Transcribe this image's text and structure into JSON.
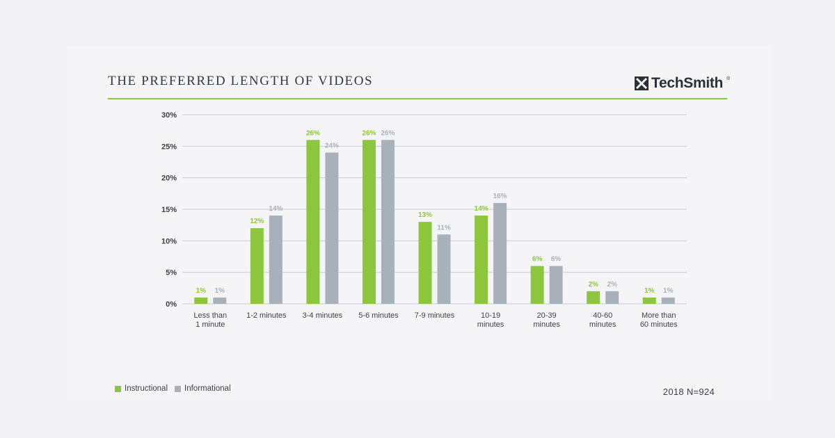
{
  "header": {
    "title": "THE PREFERRED LENGTH OF VIDEOS",
    "brand": "TechSmith",
    "brand_mark": "®"
  },
  "footer": {
    "note": "2018 N=924"
  },
  "colors": {
    "instructional": "#8cc63f",
    "informational": "#a8b1b9",
    "grid": "#c9ccd2",
    "axis_text": "#3b3f45",
    "accent_rule": "#8cc63f"
  },
  "chart_data": {
    "type": "bar",
    "categories": [
      [
        "Less than",
        "1 minute"
      ],
      [
        "1-2 minutes"
      ],
      [
        "3-4 minutes"
      ],
      [
        "5-6 minutes"
      ],
      [
        "7-9 minutes"
      ],
      [
        "10-19",
        "minutes"
      ],
      [
        "20-39",
        "minutes"
      ],
      [
        "40-60",
        "minutes"
      ],
      [
        "More than",
        "60 minutes"
      ]
    ],
    "series": [
      {
        "name": "Instructional",
        "values": [
          1,
          12,
          26,
          26,
          13,
          14,
          6,
          2,
          1
        ],
        "labels": [
          "1%",
          "12%",
          "26%",
          "26%",
          "13%",
          "14%",
          "6%",
          "2%",
          "1%"
        ]
      },
      {
        "name": "Informational",
        "values": [
          1,
          14,
          24,
          26,
          11,
          16,
          6,
          2,
          1
        ],
        "labels": [
          "1%",
          "14%",
          "24%",
          "26%",
          "11%",
          "16%",
          "6%",
          "2%",
          "1%"
        ]
      }
    ],
    "yticks": [
      0,
      5,
      10,
      15,
      20,
      25,
      30
    ],
    "ytick_labels": [
      "0%",
      "5%",
      "10%",
      "15%",
      "20%",
      "25%",
      "30%"
    ],
    "ylim": [
      0,
      30
    ],
    "grid": true,
    "legend": "bottom-left"
  }
}
